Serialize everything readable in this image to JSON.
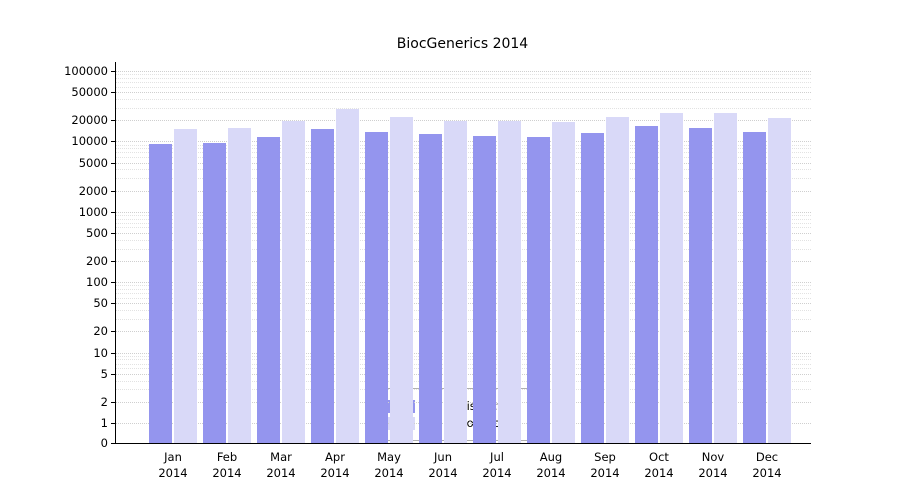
{
  "chart_data": {
    "type": "bar",
    "title": "BiocGenerics 2014",
    "xlabel": "",
    "ylabel": "",
    "scale": "log",
    "ylim": [
      0,
      100000
    ],
    "y_ticks": [
      0,
      1,
      2,
      5,
      10,
      20,
      50,
      100,
      200,
      500,
      1000,
      2000,
      5000,
      10000,
      20000,
      50000,
      100000
    ],
    "grid": "horizontal dotted, minor log gridlines",
    "legend_position": "bottom center inside plot",
    "categories": [
      "Jan",
      "Feb",
      "Mar",
      "Apr",
      "May",
      "Jun",
      "Jul",
      "Aug",
      "Sep",
      "Oct",
      "Nov",
      "Dec"
    ],
    "year_label": "2014",
    "series": [
      {
        "name": "Nb of distinct IPs",
        "color": "#9495ee",
        "values": [
          9300,
          9600,
          11500,
          14800,
          13800,
          12700,
          12000,
          11400,
          13200,
          16500,
          15300,
          13600
        ]
      },
      {
        "name": "Nb of downloads",
        "color": "#d9d9f8",
        "values": [
          14800,
          15300,
          19500,
          29000,
          22500,
          19800,
          19200,
          18800,
          22000,
          25000,
          25000,
          21500
        ]
      }
    ]
  }
}
